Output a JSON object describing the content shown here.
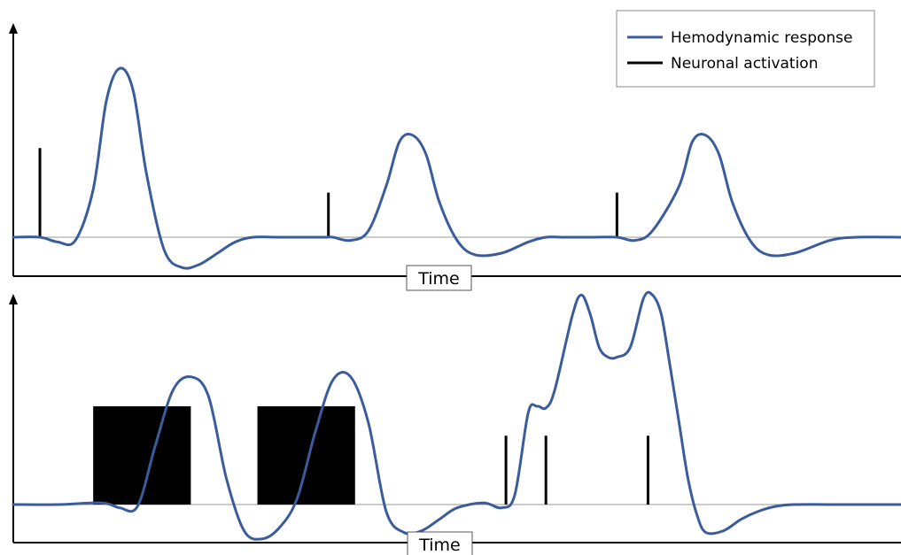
{
  "legend": {
    "position": "top-right",
    "items": [
      {
        "label": "Hemodynamic response",
        "color": "#3b5c9c",
        "kind": "line"
      },
      {
        "label": "Neuronal activation",
        "color": "#000000",
        "kind": "line"
      }
    ]
  },
  "chart_data": [
    {
      "type": "line",
      "title": "",
      "xlabel": "Time",
      "ylabel": "",
      "xlim": [
        0,
        100
      ],
      "ylim": [
        -1.5,
        6
      ],
      "grid": false,
      "baseline": 0,
      "series": [
        {
          "name": "Hemodynamic response",
          "color": "#3b5c9c",
          "x": [
            0,
            3,
            5,
            7,
            9,
            10.5,
            12,
            13.5,
            15,
            17,
            19,
            21,
            23,
            25,
            27,
            30,
            35,
            36,
            38,
            40,
            42,
            43.5,
            45,
            46.5,
            48,
            50,
            52,
            55,
            58,
            60,
            62,
            65,
            68,
            70,
            72,
            75,
            76.5,
            78,
            79.5,
            81,
            83,
            85,
            88,
            92,
            95,
            100
          ],
          "y": [
            0,
            0,
            -0.15,
            -0.1,
            1.5,
            4.3,
            5.3,
            4.6,
            2,
            -0.4,
            -0.95,
            -0.85,
            -0.5,
            -0.15,
            0,
            0,
            0,
            0,
            -0.1,
            0.2,
            1.6,
            3,
            3.2,
            2.6,
            1.1,
            -0.1,
            -0.55,
            -0.5,
            -0.15,
            0,
            0,
            0,
            0,
            -0.1,
            0.2,
            1.6,
            3,
            3.2,
            2.6,
            1.1,
            -0.1,
            -0.55,
            -0.5,
            -0.1,
            0,
            0
          ]
        }
      ],
      "events": {
        "name": "Neuronal activation",
        "type": "spike",
        "color": "#000000",
        "x": [
          3,
          35.5,
          68
        ],
        "height": [
          2.8,
          1.4,
          1.4
        ]
      }
    },
    {
      "type": "line",
      "title": "",
      "xlabel": "Time",
      "ylabel": "",
      "xlim": [
        0,
        100
      ],
      "ylim": [
        -1.5,
        7.5
      ],
      "grid": false,
      "baseline": 0,
      "series": [
        {
          "name": "Hemodynamic response",
          "color": "#3b5c9c",
          "x": [
            0,
            5,
            10,
            12,
            14,
            16,
            18,
            20,
            22,
            24,
            26,
            28,
            30,
            32,
            34,
            36,
            38,
            40,
            42,
            44,
            46,
            48,
            50,
            53,
            55,
            56.5,
            58,
            59,
            60,
            61,
            63,
            64,
            65,
            66,
            67,
            68,
            69.5,
            71,
            72,
            73,
            74,
            75,
            76,
            77,
            78,
            80,
            82,
            84,
            86,
            88,
            92,
            96,
            100
          ],
          "y": [
            0,
            0,
            0.05,
            -0.1,
            -0.05,
            1.8,
            3.5,
            3.9,
            3.3,
            0.8,
            -0.8,
            -1.05,
            -0.7,
            0.2,
            2.2,
            3.8,
            3.9,
            2.5,
            -0.2,
            -0.85,
            -0.8,
            -0.45,
            -0.1,
            0.05,
            -0.1,
            0.3,
            2.8,
            3,
            2.95,
            3.5,
            5.8,
            6.4,
            5.8,
            4.8,
            4.5,
            4.5,
            4.8,
            6.3,
            6.4,
            5.8,
            4.2,
            2.5,
            0.8,
            -0.3,
            -0.85,
            -0.8,
            -0.45,
            -0.2,
            -0.05,
            0,
            0,
            0,
            0
          ]
        }
      ],
      "events": {
        "name": "Neuronal activation",
        "type": "block_and_spike",
        "color": "#000000",
        "blocks": [
          {
            "x_start": 9,
            "x_end": 20,
            "height": 3
          },
          {
            "x_start": 27.5,
            "x_end": 38.5,
            "height": 3
          }
        ],
        "spikes": [
          {
            "x": 55.5,
            "height": 2.1
          },
          {
            "x": 60,
            "height": 2.1
          },
          {
            "x": 71.5,
            "height": 2.1
          }
        ]
      }
    }
  ]
}
